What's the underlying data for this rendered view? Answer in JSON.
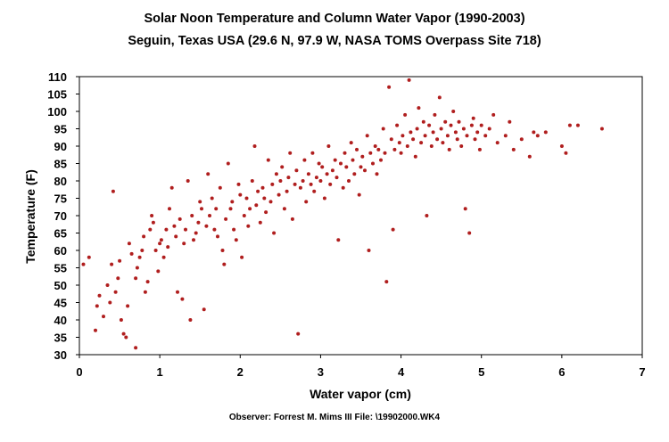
{
  "chart_data": {
    "type": "scatter",
    "title": "Solar Noon Temperature and Column Water Vapor (1990-2003)",
    "subtitle": "Seguin, Texas USA (29.6 N, 97.9 W, NASA TOMS Overpass Site 718)",
    "xlabel": "Water vapor (cm)",
    "ylabel": "Temperature (F)",
    "xlim": [
      0,
      7
    ],
    "ylim": [
      30,
      110
    ],
    "xticks": [
      0,
      1,
      2,
      3,
      4,
      5,
      6,
      7
    ],
    "yticks": [
      30,
      35,
      40,
      45,
      50,
      55,
      60,
      65,
      70,
      75,
      80,
      85,
      90,
      95,
      100,
      105,
      110
    ],
    "grid": false,
    "legend": "none",
    "marker_color": "#b01e1e",
    "series": [
      {
        "points": [
          [
            0.05,
            56
          ],
          [
            0.12,
            58
          ],
          [
            0.2,
            37
          ],
          [
            0.22,
            44
          ],
          [
            0.25,
            47
          ],
          [
            0.3,
            41
          ],
          [
            0.35,
            50
          ],
          [
            0.38,
            45
          ],
          [
            0.4,
            56
          ],
          [
            0.42,
            77
          ],
          [
            0.45,
            48
          ],
          [
            0.48,
            52
          ],
          [
            0.5,
            57
          ],
          [
            0.52,
            40
          ],
          [
            0.55,
            36
          ],
          [
            0.58,
            35
          ],
          [
            0.6,
            44
          ],
          [
            0.62,
            62
          ],
          [
            0.65,
            59
          ],
          [
            0.7,
            32
          ],
          [
            0.7,
            52
          ],
          [
            0.72,
            55
          ],
          [
            0.75,
            58
          ],
          [
            0.78,
            60
          ],
          [
            0.8,
            64
          ],
          [
            0.82,
            48
          ],
          [
            0.85,
            51
          ],
          [
            0.88,
            66
          ],
          [
            0.9,
            70
          ],
          [
            0.92,
            68
          ],
          [
            0.95,
            60
          ],
          [
            0.98,
            54
          ],
          [
            1.0,
            62
          ],
          [
            1.02,
            63
          ],
          [
            1.05,
            58
          ],
          [
            1.08,
            66
          ],
          [
            1.1,
            61
          ],
          [
            1.12,
            72
          ],
          [
            1.15,
            78
          ],
          [
            1.18,
            67
          ],
          [
            1.2,
            64
          ],
          [
            1.22,
            48
          ],
          [
            1.25,
            69
          ],
          [
            1.28,
            46
          ],
          [
            1.3,
            62
          ],
          [
            1.32,
            66
          ],
          [
            1.35,
            80
          ],
          [
            1.38,
            40
          ],
          [
            1.4,
            70
          ],
          [
            1.42,
            63
          ],
          [
            1.45,
            65
          ],
          [
            1.48,
            68
          ],
          [
            1.5,
            74
          ],
          [
            1.52,
            72
          ],
          [
            1.55,
            43
          ],
          [
            1.58,
            67
          ],
          [
            1.6,
            82
          ],
          [
            1.62,
            70
          ],
          [
            1.65,
            75
          ],
          [
            1.68,
            66
          ],
          [
            1.7,
            72
          ],
          [
            1.72,
            64
          ],
          [
            1.75,
            78
          ],
          [
            1.78,
            60
          ],
          [
            1.8,
            56
          ],
          [
            1.82,
            69
          ],
          [
            1.85,
            85
          ],
          [
            1.88,
            72
          ],
          [
            1.9,
            74
          ],
          [
            1.92,
            66
          ],
          [
            1.95,
            63
          ],
          [
            1.98,
            79
          ],
          [
            2.0,
            76
          ],
          [
            2.02,
            58
          ],
          [
            2.05,
            70
          ],
          [
            2.08,
            75
          ],
          [
            2.1,
            67
          ],
          [
            2.12,
            72
          ],
          [
            2.15,
            80
          ],
          [
            2.18,
            90
          ],
          [
            2.2,
            73
          ],
          [
            2.22,
            77
          ],
          [
            2.25,
            68
          ],
          [
            2.28,
            78
          ],
          [
            2.3,
            75
          ],
          [
            2.32,
            71
          ],
          [
            2.35,
            86
          ],
          [
            2.38,
            74
          ],
          [
            2.4,
            79
          ],
          [
            2.42,
            65
          ],
          [
            2.45,
            82
          ],
          [
            2.48,
            76
          ],
          [
            2.5,
            80
          ],
          [
            2.52,
            84
          ],
          [
            2.55,
            72
          ],
          [
            2.58,
            77
          ],
          [
            2.6,
            81
          ],
          [
            2.62,
            88
          ],
          [
            2.65,
            69
          ],
          [
            2.68,
            79
          ],
          [
            2.7,
            83
          ],
          [
            2.72,
            36
          ],
          [
            2.75,
            78
          ],
          [
            2.78,
            80
          ],
          [
            2.8,
            86
          ],
          [
            2.82,
            74
          ],
          [
            2.85,
            82
          ],
          [
            2.88,
            79
          ],
          [
            2.9,
            88
          ],
          [
            2.92,
            77
          ],
          [
            2.95,
            81
          ],
          [
            2.98,
            85
          ],
          [
            3.0,
            80
          ],
          [
            3.02,
            84
          ],
          [
            3.05,
            75
          ],
          [
            3.08,
            82
          ],
          [
            3.1,
            90
          ],
          [
            3.12,
            79
          ],
          [
            3.15,
            83
          ],
          [
            3.18,
            86
          ],
          [
            3.2,
            81
          ],
          [
            3.22,
            63
          ],
          [
            3.25,
            85
          ],
          [
            3.28,
            78
          ],
          [
            3.3,
            88
          ],
          [
            3.32,
            84
          ],
          [
            3.35,
            80
          ],
          [
            3.38,
            91
          ],
          [
            3.4,
            86
          ],
          [
            3.42,
            82
          ],
          [
            3.45,
            89
          ],
          [
            3.48,
            76
          ],
          [
            3.5,
            84
          ],
          [
            3.52,
            87
          ],
          [
            3.55,
            83
          ],
          [
            3.58,
            93
          ],
          [
            3.6,
            60
          ],
          [
            3.62,
            88
          ],
          [
            3.65,
            85
          ],
          [
            3.68,
            90
          ],
          [
            3.7,
            82
          ],
          [
            3.72,
            89
          ],
          [
            3.75,
            86
          ],
          [
            3.78,
            95
          ],
          [
            3.8,
            88
          ],
          [
            3.82,
            51
          ],
          [
            3.85,
            107
          ],
          [
            3.88,
            92
          ],
          [
            3.9,
            66
          ],
          [
            3.92,
            89
          ],
          [
            3.95,
            96
          ],
          [
            3.98,
            91
          ],
          [
            4.0,
            88
          ],
          [
            4.02,
            93
          ],
          [
            4.05,
            99
          ],
          [
            4.08,
            90
          ],
          [
            4.1,
            109
          ],
          [
            4.12,
            94
          ],
          [
            4.15,
            92
          ],
          [
            4.18,
            87
          ],
          [
            4.2,
            95
          ],
          [
            4.22,
            101
          ],
          [
            4.25,
            91
          ],
          [
            4.28,
            97
          ],
          [
            4.3,
            93
          ],
          [
            4.32,
            70
          ],
          [
            4.35,
            96
          ],
          [
            4.38,
            90
          ],
          [
            4.4,
            94
          ],
          [
            4.42,
            99
          ],
          [
            4.45,
            92
          ],
          [
            4.48,
            104
          ],
          [
            4.5,
            95
          ],
          [
            4.52,
            91
          ],
          [
            4.55,
            97
          ],
          [
            4.58,
            93
          ],
          [
            4.6,
            89
          ],
          [
            4.62,
            96
          ],
          [
            4.65,
            100
          ],
          [
            4.68,
            94
          ],
          [
            4.7,
            92
          ],
          [
            4.72,
            97
          ],
          [
            4.75,
            90
          ],
          [
            4.78,
            95
          ],
          [
            4.8,
            72
          ],
          [
            4.82,
            93
          ],
          [
            4.85,
            65
          ],
          [
            4.88,
            96
          ],
          [
            4.9,
            98
          ],
          [
            4.92,
            92
          ],
          [
            4.95,
            94
          ],
          [
            4.98,
            89
          ],
          [
            5.0,
            96
          ],
          [
            5.05,
            93
          ],
          [
            5.1,
            95
          ],
          [
            5.2,
            91
          ],
          [
            5.3,
            93
          ],
          [
            5.4,
            89
          ],
          [
            5.5,
            92
          ],
          [
            5.6,
            87
          ],
          [
            5.7,
            93
          ],
          [
            5.8,
            94
          ],
          [
            6.0,
            90
          ],
          [
            6.1,
            96
          ],
          [
            6.2,
            96
          ],
          [
            6.5,
            95
          ],
          [
            6.05,
            88
          ],
          [
            5.35,
            97
          ],
          [
            5.15,
            99
          ],
          [
            5.65,
            94
          ]
        ]
      }
    ]
  },
  "footer": "Observer: Forrest M. Mims III   File: \\19902000.WK4"
}
